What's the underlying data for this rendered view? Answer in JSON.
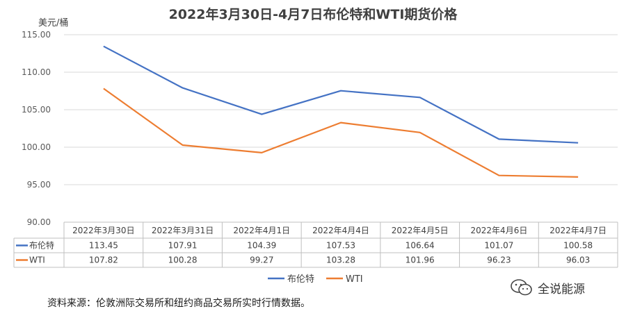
{
  "chart_data": {
    "type": "line",
    "title": "2022年3月30日-4月7日布伦特和WTI期货价格",
    "unit_label": "美元/桶",
    "categories": [
      "2022年3月30日",
      "2022年3月31日",
      "2022年4月1日",
      "2022年4月4日",
      "2022年4月5日",
      "2022年4月6日",
      "2022年4月7日"
    ],
    "y_ticks": [
      "115.00",
      "110.00",
      "105.00",
      "100.00",
      "95.00",
      "90.00"
    ],
    "ylim": [
      90,
      115
    ],
    "grid": true,
    "legend_position": "bottom",
    "series": [
      {
        "name": "布伦特",
        "color": "#4472c4",
        "values": [
          113.45,
          107.91,
          104.39,
          107.53,
          106.64,
          101.07,
          100.58
        ],
        "labels": [
          "113.45",
          "107.91",
          "104.39",
          "107.53",
          "106.64",
          "101.07",
          "100.58"
        ]
      },
      {
        "name": "WTI",
        "color": "#ed7d31",
        "values": [
          107.82,
          100.28,
          99.27,
          103.28,
          101.96,
          96.23,
          96.03
        ],
        "labels": [
          "107.82",
          "100.28",
          "99.27",
          "103.28",
          "101.96",
          "96.23",
          "96.03"
        ]
      }
    ]
  },
  "footer": {
    "source": "资料来源：伦敦洲际交易所和纽约商品交易所实时行情数据。",
    "watermark": "全说能源",
    "watermark_icon": "wechat-icon"
  }
}
